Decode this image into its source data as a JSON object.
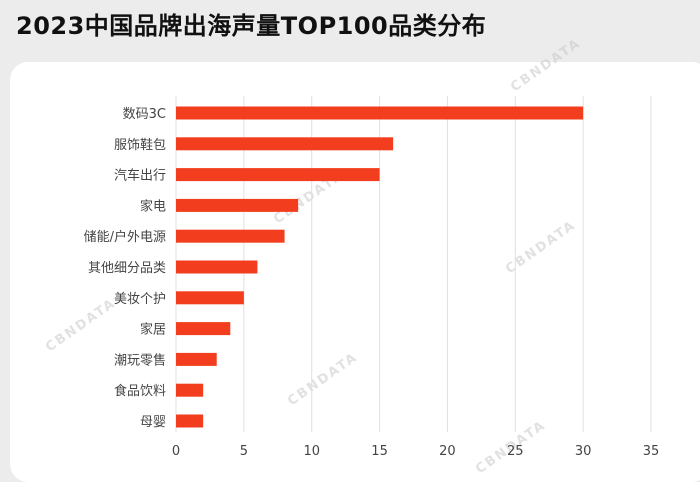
{
  "title": "2023中国品牌出海声量TOP100品类分布",
  "watermark": "CBNDATA",
  "colors": {
    "bar": "#f23d1f",
    "grid": "#e0e0e0",
    "text": "#444444"
  },
  "chart_data": {
    "type": "bar",
    "orientation": "horizontal",
    "categories": [
      "数码3C",
      "服饰鞋包",
      "汽车出行",
      "家电",
      "储能/户外电源",
      "其他细分品类",
      "美妆个护",
      "家居",
      "潮玩零售",
      "食品饮料",
      "母婴"
    ],
    "values": [
      30,
      16,
      15,
      9,
      8,
      6,
      5,
      4,
      3,
      2,
      2
    ],
    "xlim": [
      0,
      35
    ],
    "xticks": [
      0,
      5,
      10,
      15,
      20,
      25,
      30,
      35
    ],
    "grid": true
  }
}
